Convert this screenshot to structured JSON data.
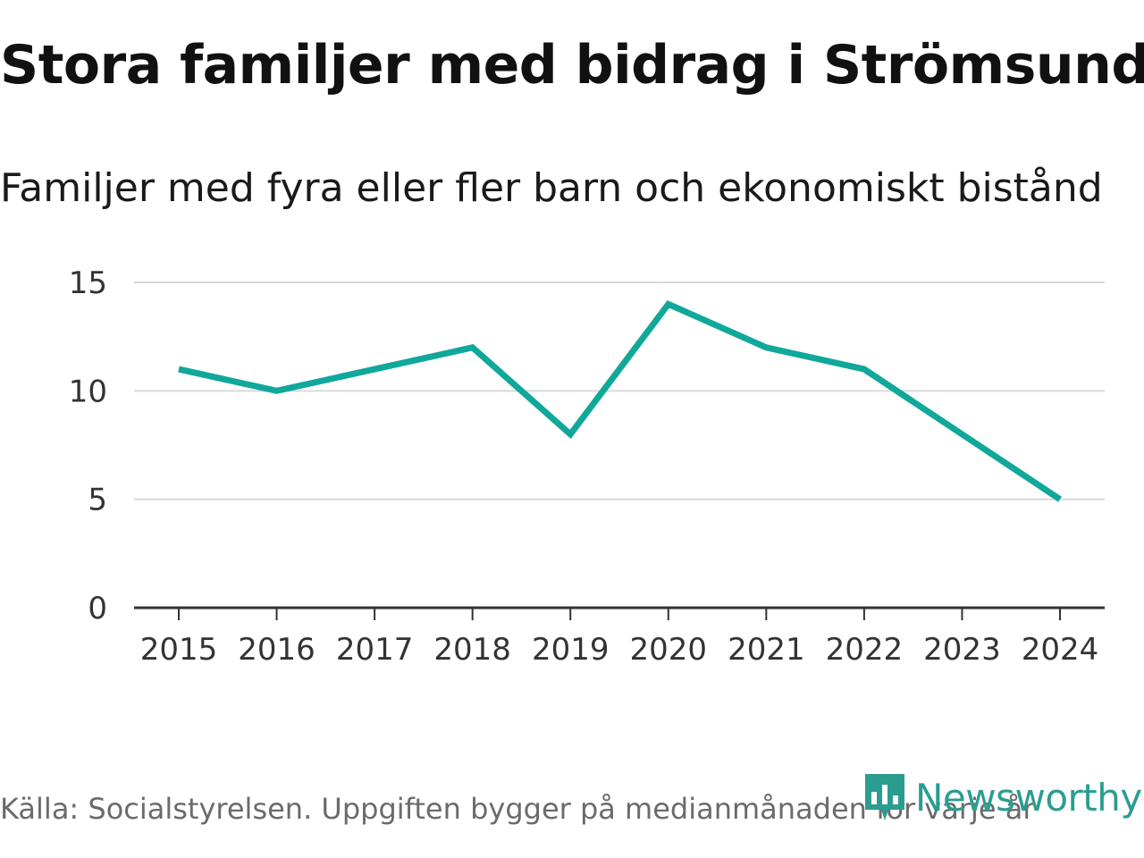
{
  "colors": {
    "line": "#10a89b",
    "grid": "#d9d9d9",
    "axis": "#333333",
    "brand": "#2a9d8f"
  },
  "chart_data": {
    "type": "line",
    "title": "Stora familjer med bidrag i Strömsund",
    "subtitle": "Familjer med fyra eller fler barn och ekonomiskt bistånd",
    "xlabel": "",
    "ylabel": "",
    "categories": [
      "2015",
      "2016",
      "2017",
      "2018",
      "2019",
      "2020",
      "2021",
      "2022",
      "2023",
      "2024"
    ],
    "series": [
      {
        "name": "Familjer",
        "values": [
          11,
          10,
          11,
          12,
          8,
          14,
          12,
          11,
          8,
          5
        ]
      }
    ],
    "ylim": [
      0,
      15
    ],
    "yticks": [
      "0",
      "5",
      "10",
      "15"
    ],
    "grid": true
  },
  "footer": {
    "source": "Källa: Socialstyrelsen. Uppgiften bygger på medianmånaden för varje år",
    "brand": "Newsworthy",
    "brand_icon": "newsworthy-logo-icon"
  }
}
